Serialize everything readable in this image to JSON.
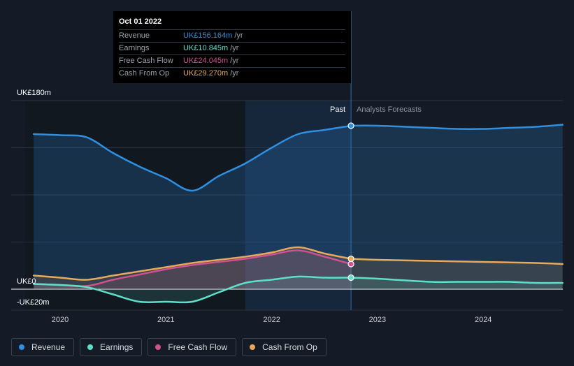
{
  "tooltip": {
    "date": "Oct 01 2022",
    "rows": [
      {
        "label": "Revenue",
        "value": "UK£156.164m",
        "unit": "/yr",
        "color": "#2f8fe0"
      },
      {
        "label": "Earnings",
        "value": "UK£10.845m",
        "unit": "/yr",
        "color": "#5ce0c9"
      },
      {
        "label": "Free Cash Flow",
        "value": "UK£24.045m",
        "unit": "/yr",
        "color": "#d1508f"
      },
      {
        "label": "Cash From Op",
        "value": "UK£29.270m",
        "unit": "/yr",
        "color": "#e8a95a"
      }
    ]
  },
  "labels": {
    "past": "Past",
    "forecast": "Analysts Forecasts"
  },
  "legend": [
    {
      "label": "Revenue",
      "color": "#2f8fe0"
    },
    {
      "label": "Earnings",
      "color": "#5ce0c9"
    },
    {
      "label": "Free Cash Flow",
      "color": "#d1508f"
    },
    {
      "label": "Cash From Op",
      "color": "#e8a95a"
    }
  ],
  "chart_data": {
    "type": "line",
    "y_axis": {
      "min": -20,
      "max": 180,
      "unit": "UK£m",
      "tick_labels": [
        "UK£180m",
        "UK£0",
        "-UK£20m"
      ]
    },
    "x_axis": {
      "min": 2019.67,
      "max": 2024.75,
      "ticks": [
        2020,
        2021,
        2022,
        2023,
        2024
      ],
      "tick_labels": [
        "2020",
        "2021",
        "2022",
        "2023",
        "2024"
      ]
    },
    "past_region_start": 2021.75,
    "past_forecast_divider": 2022.75,
    "marker_x": 2022.75,
    "grid": true,
    "series": [
      {
        "name": "Revenue",
        "color": "#2f8fe0",
        "past": [
          [
            2019.75,
            148
          ],
          [
            2020.0,
            147
          ],
          [
            2020.25,
            145
          ],
          [
            2020.5,
            130
          ],
          [
            2020.75,
            117
          ],
          [
            2021.0,
            106
          ],
          [
            2021.25,
            94
          ],
          [
            2021.5,
            108
          ],
          [
            2021.75,
            120
          ],
          [
            2022.0,
            135
          ],
          [
            2022.25,
            148
          ],
          [
            2022.5,
            152
          ],
          [
            2022.75,
            156
          ]
        ],
        "forecast": [
          [
            2022.75,
            156
          ],
          [
            2023.0,
            156
          ],
          [
            2023.5,
            154
          ],
          [
            2023.75,
            153
          ],
          [
            2024.0,
            153
          ],
          [
            2024.25,
            154
          ],
          [
            2024.5,
            155
          ],
          [
            2024.75,
            157
          ]
        ]
      },
      {
        "name": "Earnings",
        "color": "#5ce0c9",
        "past": [
          [
            2019.75,
            5
          ],
          [
            2020.0,
            4
          ],
          [
            2020.25,
            2
          ],
          [
            2020.5,
            -5
          ],
          [
            2020.75,
            -12
          ],
          [
            2021.0,
            -12
          ],
          [
            2021.25,
            -12
          ],
          [
            2021.5,
            -3
          ],
          [
            2021.75,
            6
          ],
          [
            2022.0,
            9
          ],
          [
            2022.25,
            12
          ],
          [
            2022.5,
            11
          ],
          [
            2022.75,
            11
          ]
        ],
        "forecast": [
          [
            2022.75,
            11
          ],
          [
            2023.0,
            10
          ],
          [
            2023.5,
            7
          ],
          [
            2023.75,
            7
          ],
          [
            2024.0,
            7
          ],
          [
            2024.25,
            7
          ],
          [
            2024.5,
            6
          ],
          [
            2024.75,
            6
          ]
        ]
      },
      {
        "name": "Free Cash Flow",
        "color": "#d1508f",
        "past": [
          [
            2019.75,
            5
          ],
          [
            2020.0,
            4
          ],
          [
            2020.25,
            3
          ],
          [
            2020.5,
            9
          ],
          [
            2020.75,
            14
          ],
          [
            2021.0,
            19
          ],
          [
            2021.25,
            23
          ],
          [
            2021.5,
            26
          ],
          [
            2021.75,
            29
          ],
          [
            2022.0,
            33
          ],
          [
            2022.25,
            37
          ],
          [
            2022.5,
            31
          ],
          [
            2022.75,
            24
          ]
        ]
      },
      {
        "name": "Cash From Op",
        "color": "#e8a95a",
        "past": [
          [
            2019.75,
            13
          ],
          [
            2020.0,
            11
          ],
          [
            2020.25,
            9
          ],
          [
            2020.5,
            13
          ],
          [
            2020.75,
            17
          ],
          [
            2021.0,
            21
          ],
          [
            2021.25,
            25
          ],
          [
            2021.5,
            28
          ],
          [
            2021.75,
            31
          ],
          [
            2022.0,
            35
          ],
          [
            2022.25,
            40
          ],
          [
            2022.5,
            34
          ],
          [
            2022.75,
            29
          ]
        ],
        "forecast": [
          [
            2022.75,
            29
          ],
          [
            2023.0,
            28
          ],
          [
            2023.5,
            27
          ],
          [
            2024.0,
            26
          ],
          [
            2024.5,
            25
          ],
          [
            2024.75,
            24
          ]
        ]
      }
    ]
  }
}
